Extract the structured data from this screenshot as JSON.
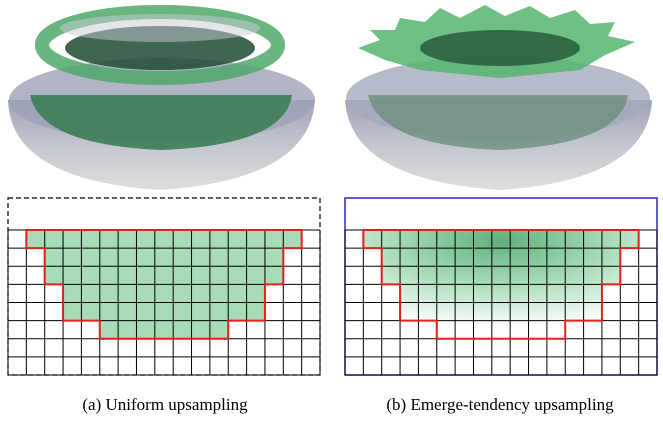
{
  "figure": {
    "panels": [
      {
        "caption": "(a) Uniform upsampling"
      },
      {
        "caption": "(b) Emerge-tendency upsampling"
      }
    ]
  }
}
